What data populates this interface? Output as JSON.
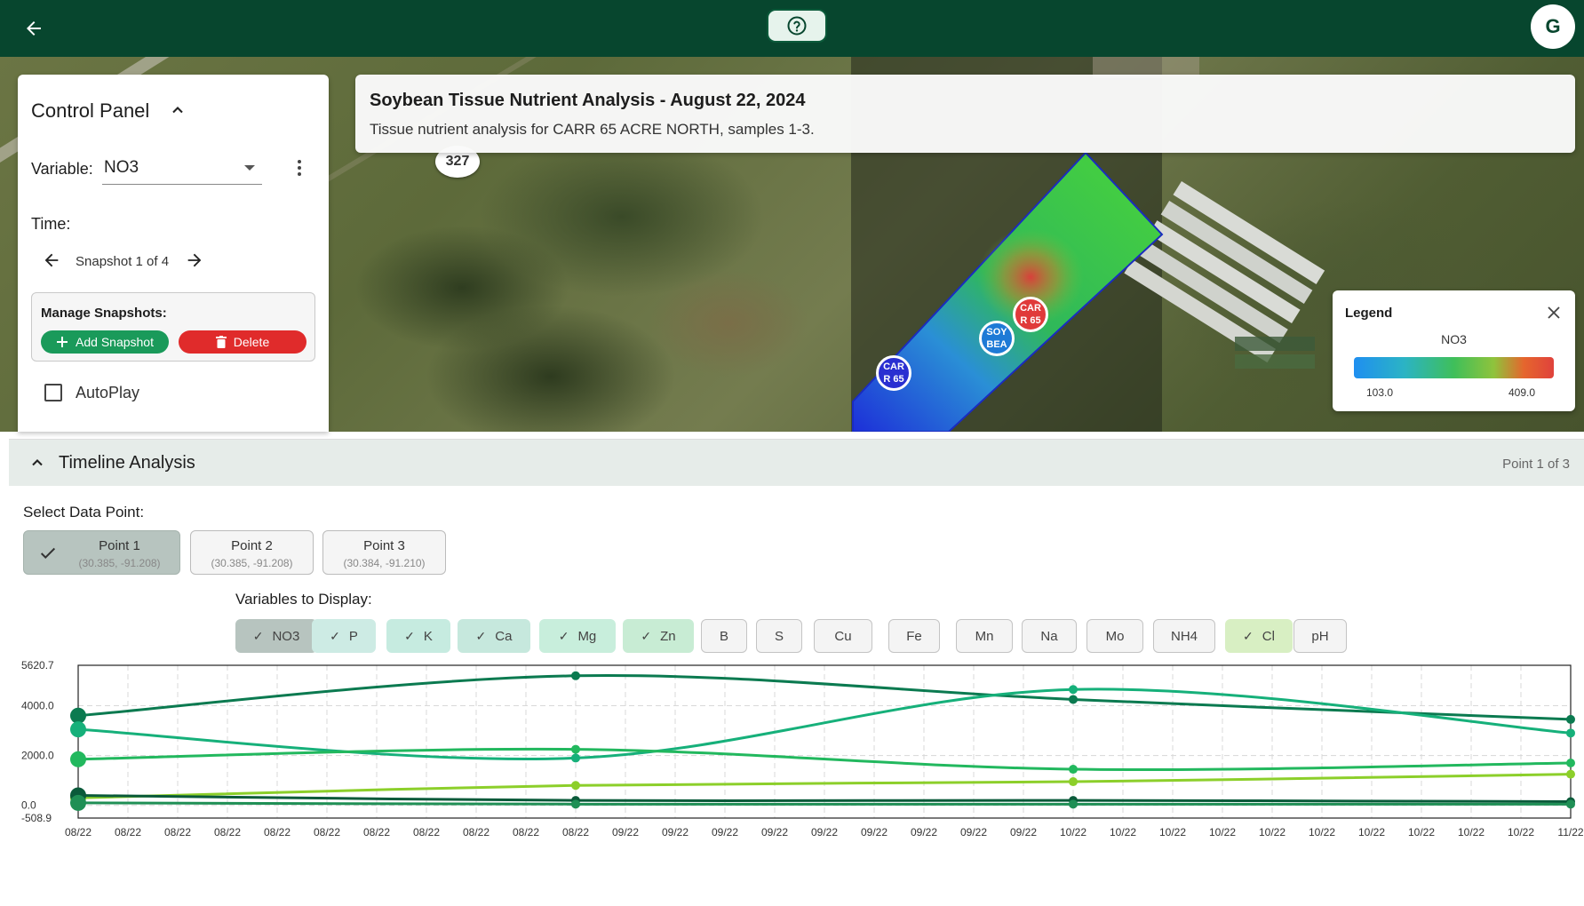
{
  "header": {
    "back_icon": "arrow-left-icon",
    "help_icon": "question-circle-icon",
    "avatar_initial": "G"
  },
  "map": {
    "road_shield": "327",
    "markers": [
      {
        "label": "CAR R 65",
        "color": "#2a2fd1"
      },
      {
        "label": "SOY BEA",
        "color": "#1e7ad6"
      },
      {
        "label": "CAR R 65",
        "color": "#e03a3a"
      }
    ]
  },
  "control_panel": {
    "title": "Control Panel",
    "variable_label": "Variable:",
    "variable_value": "NO3",
    "time_label": "Time:",
    "snapshot_text": "Snapshot 1 of 4",
    "manage_label": "Manage Snapshots:",
    "add_label": "Add Snapshot",
    "delete_label": "Delete",
    "autoplay_label": "AutoPlay",
    "autoplay_checked": false
  },
  "title_card": {
    "title": "Soybean Tissue Nutrient Analysis - August 22, 2024",
    "subtitle": "Tissue nutrient analysis for CARR 65 ACRE NORTH, samples 1-3."
  },
  "legend": {
    "title": "Legend",
    "variable": "NO3",
    "min": "103.0",
    "max": "409.0",
    "colors": [
      "#1f8ff0",
      "#2bb3c5",
      "#3fbf5a",
      "#8fc33c",
      "#e5662d",
      "#e0423c"
    ]
  },
  "timeline": {
    "title": "Timeline Analysis",
    "point_indicator": "Point 1 of 3",
    "select_label": "Select Data Point:",
    "points": [
      {
        "name": "Point 1",
        "coord": "(30.385, -91.208)",
        "selected": true
      },
      {
        "name": "Point 2",
        "coord": "(30.385, -91.208)",
        "selected": false
      },
      {
        "name": "Point 3",
        "coord": "(30.384, -91.210)",
        "selected": false
      }
    ],
    "vars_label": "Variables to Display:",
    "variables": [
      {
        "name": "NO3",
        "selected": true,
        "bg": "#b7c4bf"
      },
      {
        "name": "P",
        "selected": true,
        "bg": "#cdebe4"
      },
      {
        "name": "K",
        "selected": true,
        "bg": "#c6ebe0"
      },
      {
        "name": "Ca",
        "selected": true,
        "bg": "#c6e8dd"
      },
      {
        "name": "Mg",
        "selected": true,
        "bg": "#c8eedc"
      },
      {
        "name": "Zn",
        "selected": true,
        "bg": "#c8ecd4"
      },
      {
        "name": "B",
        "selected": false,
        "bg": "#f4f4f4"
      },
      {
        "name": "S",
        "selected": false,
        "bg": "#f4f4f4"
      },
      {
        "name": "Cu",
        "selected": false,
        "bg": "#f4f4f4"
      },
      {
        "name": "Fe",
        "selected": false,
        "bg": "#f4f4f4"
      },
      {
        "name": "Mn",
        "selected": false,
        "bg": "#f4f4f4"
      },
      {
        "name": "Na",
        "selected": false,
        "bg": "#f4f4f4"
      },
      {
        "name": "Mo",
        "selected": false,
        "bg": "#f4f4f4"
      },
      {
        "name": "NH4",
        "selected": false,
        "bg": "#f4f4f4"
      },
      {
        "name": "Cl",
        "selected": true,
        "bg": "#d8efc3"
      },
      {
        "name": "pH",
        "selected": false,
        "bg": "#f4f4f4"
      }
    ]
  },
  "chart_data": {
    "type": "line",
    "x_tick_labels": [
      "08/22",
      "08/22",
      "08/22",
      "08/22",
      "08/22",
      "08/22",
      "08/22",
      "08/22",
      "08/22",
      "08/22",
      "08/22",
      "09/22",
      "09/22",
      "09/22",
      "09/22",
      "09/22",
      "09/22",
      "09/22",
      "09/22",
      "09/22",
      "10/22",
      "10/22",
      "10/22",
      "10/22",
      "10/22",
      "10/22",
      "10/22",
      "10/22",
      "10/22",
      "10/22",
      "11/22"
    ],
    "y_tick_labels": [
      "5620.7",
      "4000.0",
      "2000.0",
      "0.0",
      "-508.9"
    ],
    "y_ticks": [
      5620.7,
      4000.0,
      2000.0,
      0.0,
      -508.9
    ],
    "ylim": [
      -508.9,
      5620.7
    ],
    "x_sample_positions": [
      0,
      10,
      20,
      30
    ],
    "grid": true,
    "series": [
      {
        "color": "#0b7a50",
        "values": [
          3600,
          5200,
          4250,
          3450
        ]
      },
      {
        "color": "#16b07a",
        "values": [
          3050,
          1900,
          4650,
          2900
        ]
      },
      {
        "color": "#22b85e",
        "values": [
          1850,
          2250,
          1450,
          1700
        ]
      },
      {
        "color": "#8ccf2a",
        "values": [
          300,
          800,
          950,
          1250
        ]
      },
      {
        "color": "#0a5a3a",
        "values": [
          400,
          200,
          200,
          150
        ]
      },
      {
        "color": "#1f8f55",
        "values": [
          100,
          50,
          50,
          50
        ]
      }
    ]
  }
}
